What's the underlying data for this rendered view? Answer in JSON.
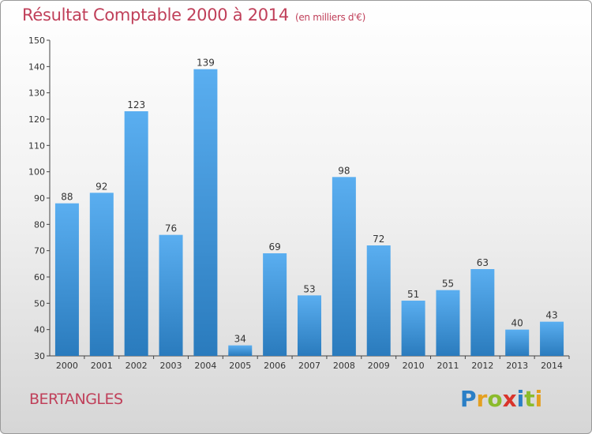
{
  "title": "Résultat Comptable 2000 à 2014",
  "unit_note": "(en milliers d'€)",
  "place": "BERTANGLES",
  "logo": {
    "text": "Proxiti",
    "letters": [
      {
        "ch": "P",
        "color": "#2a7fc6"
      },
      {
        "ch": "r",
        "color": "#e4a021"
      },
      {
        "ch": "o",
        "color": "#8bbb2c"
      },
      {
        "ch": "x",
        "color": "#d9342b"
      },
      {
        "ch": "i",
        "color": "#2a7fc6"
      },
      {
        "ch": "t",
        "color": "#8bbb2c"
      },
      {
        "ch": "i",
        "color": "#e4a021"
      }
    ]
  },
  "colors": {
    "bar_light": "#5aaef0",
    "bar_dark": "#2a7bbd",
    "title": "#c0405a"
  },
  "chart_data": {
    "type": "bar",
    "categories": [
      "2000",
      "2001",
      "2002",
      "2003",
      "2004",
      "2005",
      "2006",
      "2007",
      "2008",
      "2009",
      "2010",
      "2011",
      "2012",
      "2013",
      "2014"
    ],
    "values": [
      88,
      92,
      123,
      76,
      139,
      34,
      69,
      53,
      98,
      72,
      51,
      55,
      63,
      40,
      43
    ],
    "ylim": [
      30,
      150
    ],
    "yticks": [
      30,
      40,
      50,
      60,
      70,
      80,
      90,
      100,
      110,
      120,
      130,
      140,
      150
    ],
    "grid": false,
    "legend": "none"
  }
}
